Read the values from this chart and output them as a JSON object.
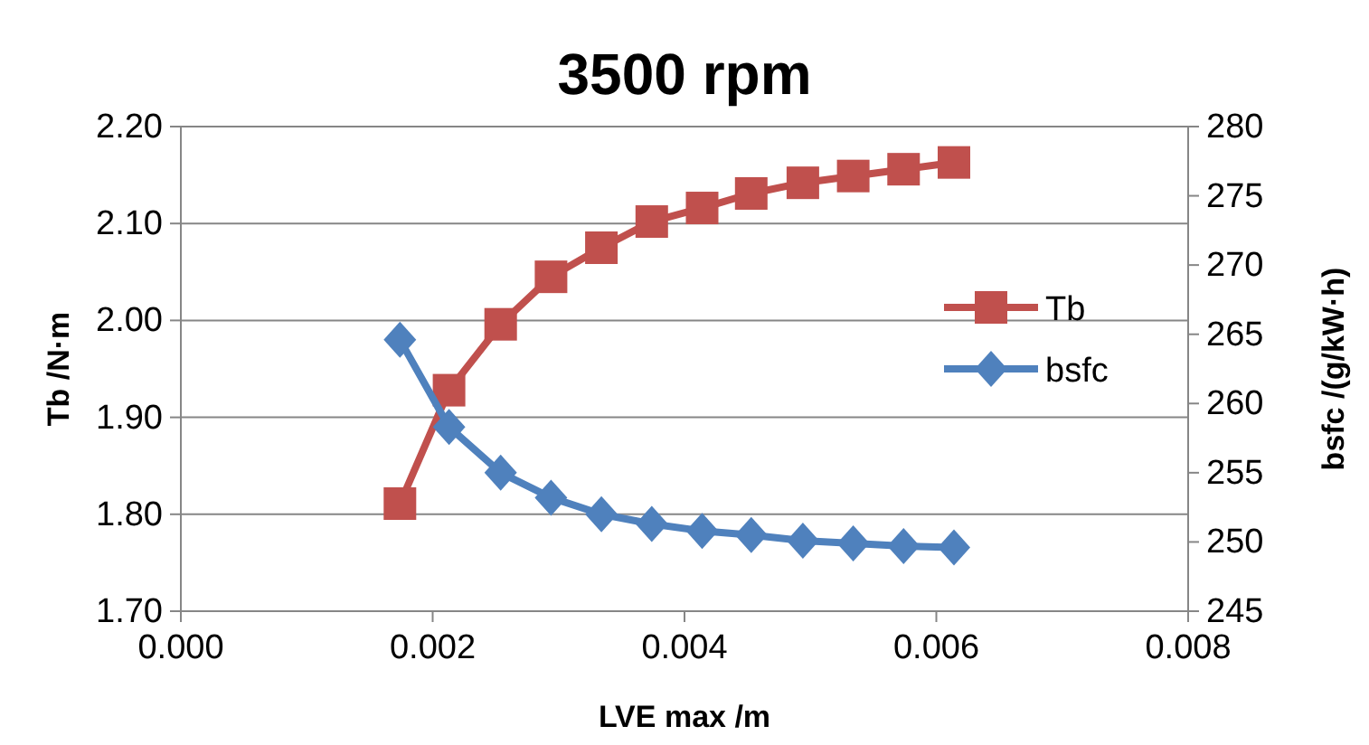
{
  "chart_data": {
    "type": "line",
    "title": "3500 rpm",
    "xlabel": "LVE max /m",
    "ylabel": "Tb /N·m",
    "y2label": "bsfc /(g/kW·h)",
    "x": [
      0.00174,
      0.00213,
      0.00254,
      0.00294,
      0.00334,
      0.00374,
      0.00414,
      0.00453,
      0.00494,
      0.00534,
      0.00574,
      0.00614
    ],
    "series": [
      {
        "name": "Tb",
        "color": "#c0504d",
        "marker": "square",
        "values": [
          1.811,
          1.928,
          1.996,
          2.045,
          2.075,
          2.102,
          2.116,
          2.131,
          2.142,
          2.149,
          2.156,
          2.163
        ]
      },
      {
        "name": "bsfc",
        "color": "#4f81bd",
        "marker": "diamond",
        "axis": "y2",
        "values": [
          264.6,
          258.3,
          255.0,
          253.2,
          252.0,
          251.3,
          250.8,
          250.5,
          250.1,
          249.9,
          249.7,
          249.6
        ]
      }
    ],
    "xlim": [
      0,
      0.008
    ],
    "xticks": [
      {
        "value": 0,
        "label": "0.000"
      },
      {
        "value": 0.002,
        "label": "0.002"
      },
      {
        "value": 0.004,
        "label": "0.004"
      },
      {
        "value": 0.006,
        "label": "0.006"
      },
      {
        "value": 0.008,
        "label": "0.008"
      }
    ],
    "ylim": [
      1.7,
      2.2
    ],
    "yticks": [
      {
        "value": 1.7,
        "label": "1.70"
      },
      {
        "value": 1.8,
        "label": "1.80"
      },
      {
        "value": 1.9,
        "label": "1.90"
      },
      {
        "value": 2.0,
        "label": "2.00"
      },
      {
        "value": 2.1,
        "label": "2.10"
      },
      {
        "value": 2.2,
        "label": "2.20"
      }
    ],
    "y2lim": [
      245,
      280
    ],
    "y2ticks": [
      245,
      250,
      255,
      260,
      265,
      270,
      275,
      280
    ],
    "grid": "y",
    "legend": "right",
    "line_style": "solid"
  }
}
